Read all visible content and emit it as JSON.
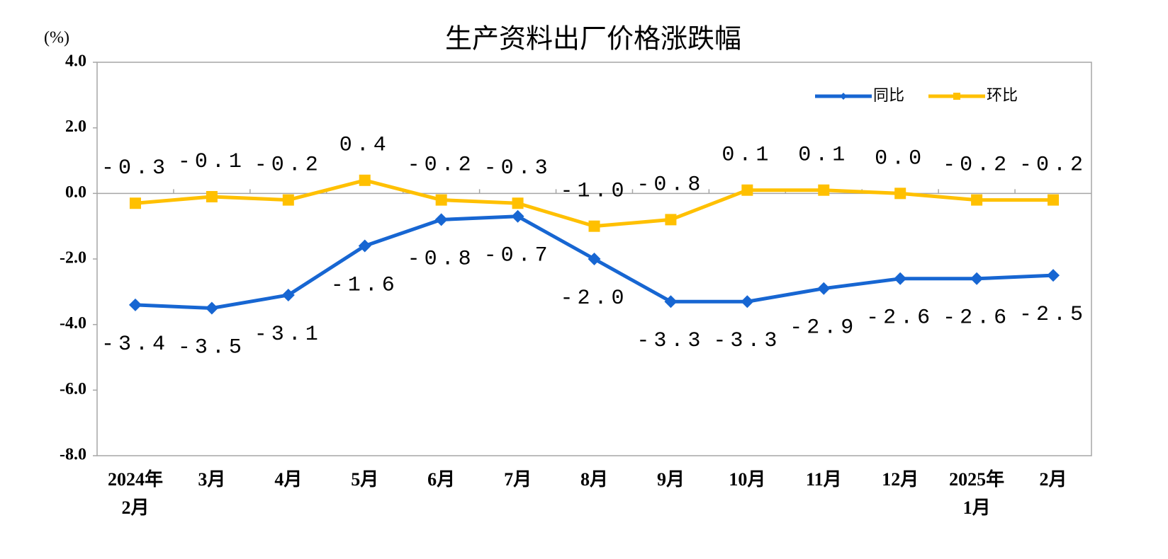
{
  "chart_data": {
    "type": "line",
    "title": "生产资料出厂价格涨跌幅",
    "y_label": "(%)",
    "categories": [
      "2024年\n2月",
      "3月",
      "4月",
      "5月",
      "6月",
      "7月",
      "8月",
      "9月",
      "10月",
      "11月",
      "12月",
      "2025年\n1月",
      "2月"
    ],
    "series": [
      {
        "name": "同比",
        "color": "#1766d2",
        "marker": "diamond",
        "values": [
          -3.4,
          -3.5,
          -3.1,
          -1.6,
          -0.8,
          -0.7,
          -2.0,
          -3.3,
          -3.3,
          -2.9,
          -2.6,
          -2.6,
          -2.5
        ],
        "value_labels": [
          "-3.4",
          "-3.5",
          "-3.1",
          "-1.6",
          "-0.8",
          "-0.7",
          "-2.0",
          "-3.3",
          "-3.3",
          "-2.9",
          "-2.6",
          "-2.6",
          "-2.5"
        ]
      },
      {
        "name": "环比",
        "color": "#ffc000",
        "marker": "square",
        "values": [
          -0.3,
          -0.1,
          -0.2,
          0.4,
          -0.2,
          -0.3,
          -1.0,
          -0.8,
          0.1,
          0.1,
          0.0,
          -0.2,
          -0.2
        ],
        "value_labels": [
          "-0.3",
          "-0.1",
          "-0.2",
          "0.4",
          "-0.2",
          "-0.3",
          "-1.0",
          "-0.8",
          "0.1",
          "0.1",
          "0.0",
          "-0.2",
          "-0.2"
        ]
      }
    ],
    "ylim": [
      -8,
      4
    ],
    "yticks": [
      {
        "value": -8,
        "label": "-8.0"
      },
      {
        "value": -6,
        "label": "-6.0"
      },
      {
        "value": -4,
        "label": "-4.0"
      },
      {
        "value": -2,
        "label": "-2.0"
      },
      {
        "value": 0,
        "label": "0.0"
      },
      {
        "value": 2,
        "label": "2.0"
      },
      {
        "value": 4,
        "label": "4.0"
      }
    ],
    "grid": false,
    "legend": "top-right"
  }
}
